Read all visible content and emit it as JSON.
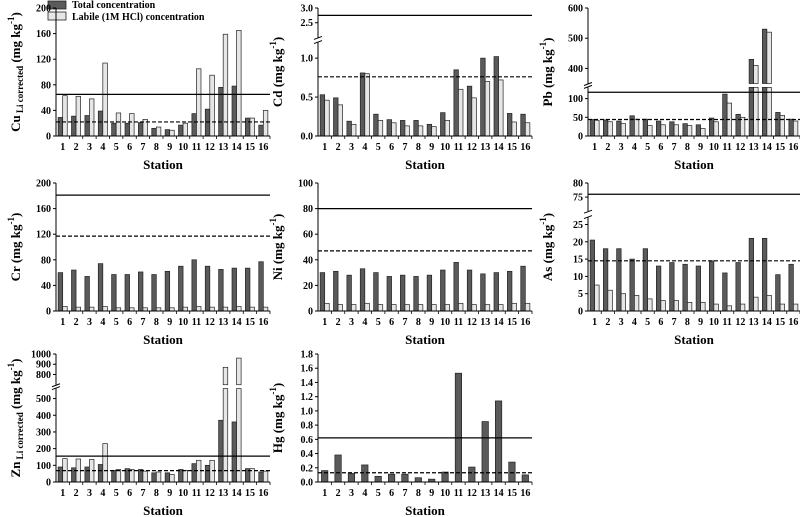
{
  "figure": {
    "legend": [
      {
        "label": "Total concentration",
        "color": "#5a5a5a"
      },
      {
        "label": "Labile (1M HCl) concentration",
        "color": "#e6e6e6"
      }
    ],
    "colors": {
      "total": "#5a5a5a",
      "labile": "#e6e6e6",
      "edge": "#222222",
      "axis": "#000000"
    }
  },
  "chart_data": [
    {
      "type": "bar",
      "id": "cu",
      "ylabel": "Cu Li corrected (mg kg-1)",
      "ylabel_main": "Cu",
      "ylabel_sub": "Li corrected",
      "ylabel_unit": "(mg kg",
      "ylabel_sup": "-1",
      "xlabel": "Station",
      "categories": [
        "1",
        "2",
        "3",
        "4",
        "5",
        "6",
        "7",
        "8",
        "9",
        "10",
        "11",
        "12",
        "13",
        "14",
        "15",
        "16"
      ],
      "series": [
        {
          "name": "Total concentration",
          "values": [
            29,
            31,
            32,
            39,
            20,
            20,
            21,
            12,
            10,
            17,
            35,
            42,
            76,
            78,
            28,
            17
          ]
        },
        {
          "name": "Labile (1M HCl) concentration",
          "values": [
            63,
            62,
            58,
            114,
            36,
            35,
            26,
            14,
            9,
            20,
            105,
            95,
            159,
            165,
            28,
            40
          ]
        }
      ],
      "ylim": [
        0,
        200
      ],
      "yticks": [
        "0",
        "40",
        "80",
        "120",
        "160",
        "200"
      ],
      "ref_lines": [
        {
          "value": 65,
          "style": "solid"
        },
        {
          "value": 22,
          "style": "dashed"
        }
      ]
    },
    {
      "type": "bar",
      "id": "cd",
      "ylabel": "Cd (mg kg-1)",
      "ylabel_main": "Cd",
      "ylabel_unit": "(mg kg",
      "ylabel_sup": "-1",
      "xlabel": "Station",
      "categories": [
        "1",
        "2",
        "3",
        "4",
        "5",
        "6",
        "7",
        "8",
        "9",
        "10",
        "11",
        "12",
        "13",
        "14",
        "15",
        "16"
      ],
      "series": [
        {
          "name": "Total concentration",
          "values": [
            0.53,
            0.49,
            0.19,
            0.81,
            0.28,
            0.21,
            0.2,
            0.2,
            0.15,
            0.3,
            0.85,
            0.64,
            1.0,
            1.02,
            0.29,
            0.28
          ]
        },
        {
          "name": "Labile (1M HCl) concentration",
          "values": [
            0.46,
            0.4,
            0.15,
            0.8,
            0.2,
            0.17,
            0.13,
            0.13,
            0.12,
            0.2,
            0.6,
            0.49,
            0.7,
            0.72,
            0.18,
            0.17
          ]
        }
      ],
      "ylim": [
        0,
        3.0
      ],
      "axis_break": [
        1.2,
        2.0
      ],
      "yticks": [
        "0.0",
        "0.5",
        "1.0",
        "2.5",
        "3.0"
      ],
      "ref_lines": [
        {
          "value": 2.75,
          "style": "solid"
        },
        {
          "value": 0.76,
          "style": "dashed"
        }
      ]
    },
    {
      "type": "bar",
      "id": "pb",
      "ylabel": "Pb (mg kg-1)",
      "ylabel_main": "Pb",
      "ylabel_unit": "(mg kg",
      "ylabel_sup": "-1",
      "xlabel": "Station",
      "categories": [
        "1",
        "2",
        "3",
        "4",
        "5",
        "6",
        "7",
        "8",
        "9",
        "10",
        "11",
        "12",
        "13",
        "14",
        "15",
        "16"
      ],
      "series": [
        {
          "name": "Total concentration",
          "values": [
            44,
            43,
            40,
            54,
            45,
            40,
            38,
            33,
            30,
            48,
            112,
            58,
            430,
            530,
            63,
            45
          ]
        },
        {
          "name": "Labile (1M HCl) concentration",
          "values": [
            42,
            38,
            33,
            45,
            28,
            30,
            30,
            28,
            20,
            38,
            88,
            50,
            410,
            520,
            55,
            40
          ]
        }
      ],
      "ylim": [
        0,
        600
      ],
      "axis_break": [
        130,
        350
      ],
      "yticks": [
        "0",
        "50",
        "100",
        "400",
        "500",
        "600"
      ],
      "ref_lines": [
        {
          "value": 117,
          "style": "solid"
        },
        {
          "value": 44,
          "style": "dashed"
        }
      ]
    },
    {
      "type": "bar",
      "id": "cr",
      "ylabel": "Cr (mg kg-1)",
      "ylabel_main": "Cr",
      "ylabel_unit": "(mg kg",
      "ylabel_sup": "-1",
      "xlabel": "Station",
      "categories": [
        "1",
        "2",
        "3",
        "4",
        "5",
        "6",
        "7",
        "8",
        "9",
        "10",
        "11",
        "12",
        "13",
        "14",
        "15",
        "16"
      ],
      "series": [
        {
          "name": "Total concentration",
          "values": [
            60,
            64,
            54,
            74,
            57,
            57,
            61,
            57,
            62,
            70,
            80,
            70,
            65,
            67,
            67,
            77
          ]
        },
        {
          "name": "Labile (1M HCl) concentration",
          "values": [
            7,
            6,
            6,
            7,
            5,
            5,
            5,
            5,
            5,
            6,
            7,
            6,
            6,
            7,
            6,
            6
          ]
        }
      ],
      "ylim": [
        0,
        200
      ],
      "yticks": [
        "0",
        "40",
        "80",
        "120",
        "160",
        "200"
      ],
      "ref_lines": [
        {
          "value": 181,
          "style": "solid"
        },
        {
          "value": 117,
          "style": "dashed"
        }
      ]
    },
    {
      "type": "bar",
      "id": "ni",
      "ylabel": "Ni (mg kg-1)",
      "ylabel_main": "Ni",
      "ylabel_unit": "(mg kg",
      "ylabel_sup": "-1",
      "xlabel": "Station",
      "categories": [
        "1",
        "2",
        "3",
        "4",
        "5",
        "6",
        "7",
        "8",
        "9",
        "10",
        "11",
        "12",
        "13",
        "14",
        "15",
        "16"
      ],
      "series": [
        {
          "name": "Total concentration",
          "values": [
            30,
            31,
            28,
            33,
            30,
            27,
            28,
            27,
            28,
            32,
            38,
            32,
            29,
            30,
            31,
            35
          ]
        },
        {
          "name": "Labile (1M HCl) concentration",
          "values": [
            6,
            5,
            5,
            6,
            5,
            5,
            5,
            5,
            5,
            5,
            6,
            5,
            5,
            5,
            6,
            6
          ]
        }
      ],
      "ylim": [
        0,
        100
      ],
      "yticks": [
        "0",
        "20",
        "40",
        "60",
        "80",
        "100"
      ],
      "ref_lines": [
        {
          "value": 80,
          "style": "solid"
        },
        {
          "value": 47,
          "style": "dashed"
        }
      ]
    },
    {
      "type": "bar",
      "id": "as",
      "ylabel": "As (mg kg-1)",
      "ylabel_main": "As",
      "ylabel_unit": "(mg kg",
      "ylabel_sup": "-1",
      "xlabel": "Station",
      "categories": [
        "1",
        "2",
        "3",
        "4",
        "5",
        "6",
        "7",
        "8",
        "9",
        "10",
        "11",
        "12",
        "13",
        "14",
        "15",
        "16"
      ],
      "series": [
        {
          "name": "Total concentration",
          "values": [
            20.5,
            18,
            18,
            15,
            18,
            13,
            14,
            13.5,
            13,
            14.5,
            11,
            14,
            21,
            21,
            10.5,
            13.5
          ]
        },
        {
          "name": "Labile (1M HCl) concentration",
          "values": [
            7.5,
            6,
            5,
            4.5,
            3.5,
            3,
            3,
            2.5,
            2.5,
            2,
            1.5,
            2,
            4,
            4.5,
            2,
            2
          ]
        }
      ],
      "ylim": [
        0,
        80
      ],
      "axis_break": [
        27,
        70
      ],
      "yticks": [
        "0",
        "5",
        "10",
        "15",
        "20",
        "25",
        "75",
        "80"
      ],
      "ref_lines": [
        {
          "value": 76,
          "style": "solid"
        },
        {
          "value": 14.5,
          "style": "dashed"
        }
      ]
    },
    {
      "type": "bar",
      "id": "zn",
      "ylabel": "Zn Li corrected (mg kg-1)",
      "ylabel_main": "Zn",
      "ylabel_sub": "Li corrected",
      "ylabel_unit": "(mg kg",
      "ylabel_sup": "-1",
      "xlabel": "Station",
      "categories": [
        "1",
        "2",
        "3",
        "4",
        "5",
        "6",
        "7",
        "8",
        "9",
        "10",
        "11",
        "12",
        "13",
        "14",
        "15",
        "16"
      ],
      "series": [
        {
          "name": "Total concentration",
          "values": [
            90,
            85,
            90,
            105,
            70,
            80,
            75,
            55,
            55,
            75,
            110,
            100,
            370,
            360,
            80,
            60
          ]
        },
        {
          "name": "Labile (1M HCl) concentration",
          "values": [
            140,
            138,
            135,
            230,
            75,
            75,
            65,
            60,
            45,
            70,
            130,
            130,
            870,
            960,
            80,
            65
          ]
        }
      ],
      "ylim": [
        0,
        1000
      ],
      "axis_break": [
        560,
        700
      ],
      "yticks": [
        "0",
        "100",
        "200",
        "300",
        "400",
        "500",
        "800",
        "900",
        "1000"
      ],
      "ref_lines": [
        {
          "value": 155,
          "style": "solid"
        },
        {
          "value": 68,
          "style": "dashed"
        }
      ]
    },
    {
      "type": "bar",
      "id": "hg",
      "ylabel": "Hg (mg kg-1)",
      "ylabel_main": "Hg",
      "ylabel_unit": "(mg kg",
      "ylabel_sup": "-1",
      "xlabel": "Station",
      "categories": [
        "1",
        "2",
        "3",
        "4",
        "5",
        "6",
        "7",
        "8",
        "9",
        "10",
        "11",
        "12",
        "13",
        "14",
        "15",
        "16"
      ],
      "series": [
        {
          "name": "Total concentration",
          "values": [
            0.16,
            0.38,
            0.12,
            0.24,
            0.08,
            0.11,
            0.11,
            0.06,
            0.04,
            0.14,
            1.53,
            0.21,
            0.85,
            1.14,
            0.28,
            0.1
          ]
        }
      ],
      "ylim": [
        0,
        1.8
      ],
      "yticks": [
        "0.0",
        "0.2",
        "0.4",
        "0.6",
        "0.8",
        "1.0",
        "1.2",
        "1.4",
        "1.6",
        "1.8"
      ],
      "ref_lines": [
        {
          "value": 0.62,
          "style": "solid"
        },
        {
          "value": 0.13,
          "style": "dashed"
        }
      ]
    }
  ]
}
